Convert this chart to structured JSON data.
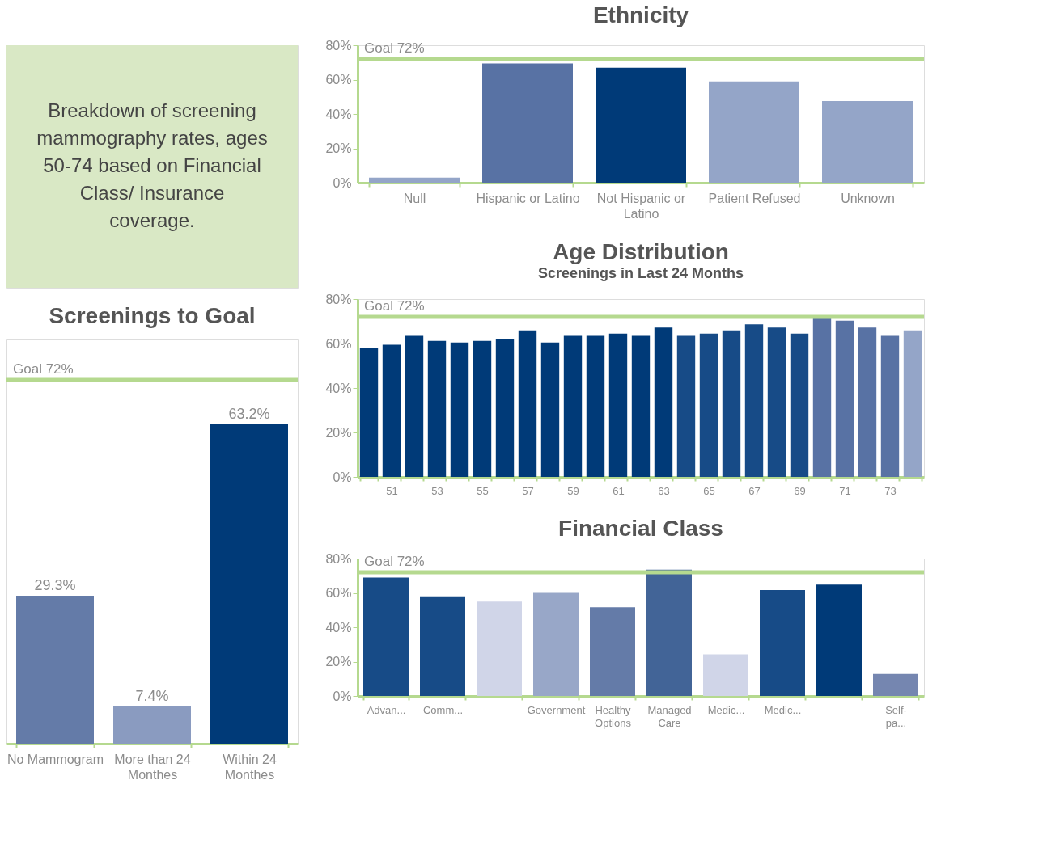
{
  "chart_data": [
    {
      "type": "other",
      "title": "Breakdown of screening mammography rates, ages 50-74 based on Financial Class/ Insurance coverage.",
      "color": "#d9e8c5"
    },
    {
      "type": "bar",
      "title": "Screenings to Goal",
      "categories": [
        "No Mammogram",
        "More than 24 Monthes",
        "Within 24 Monthes"
      ],
      "values": [
        29.3,
        7.4,
        63.2
      ],
      "colors": [
        "#647ba8",
        "#8a9bc0",
        "#003a78"
      ],
      "value_labels": [
        "29.3%",
        "7.4%",
        "63.2%"
      ],
      "ref_lines": [
        {
          "axis": "y",
          "value": 72,
          "label": "Goal 72%",
          "color": "#b5d98f"
        }
      ]
    },
    {
      "type": "bar",
      "title": "Ethnicity",
      "categories": [
        "Null",
        "Hispanic or Latino",
        "Not Hispanic or Latino",
        "Patient Refused",
        "Unknown"
      ],
      "values": [
        3,
        69.4,
        67,
        59,
        47.5
      ],
      "colors": [
        "#94a5c8",
        "#5872a4",
        "#003a78",
        "#94a5c8",
        "#94a5c8"
      ],
      "ylim": [
        0,
        80
      ],
      "yticks": [
        {
          "value": 0,
          "label": "0%"
        },
        {
          "value": 20,
          "label": "20%"
        },
        {
          "value": 40,
          "label": "40%"
        },
        {
          "value": 60,
          "label": "60%"
        },
        {
          "value": 80,
          "label": "80%"
        }
      ],
      "ref_lines": [
        {
          "axis": "y",
          "value": 72,
          "label": "Goal 72%",
          "color": "#b5d98f"
        }
      ]
    },
    {
      "type": "bar",
      "title": "Age Distribution",
      "subtitle": "Screenings in Last 24 Months",
      "categories": [
        null,
        "51",
        null,
        "53",
        null,
        "55",
        null,
        "57",
        null,
        "59",
        null,
        "61",
        null,
        "63",
        null,
        "65",
        null,
        "67",
        null,
        "69",
        null,
        "71",
        null,
        "73",
        null
      ],
      "values": [
        58.2,
        59.5,
        63.5,
        61.2,
        60.5,
        61.2,
        62.2,
        65.9,
        60.5,
        63.5,
        63.5,
        64.5,
        63.5,
        67.2,
        63.5,
        64.5,
        65.9,
        68.6,
        67.2,
        64.5,
        71.3,
        70.3,
        67.2,
        63.5,
        65.9
      ],
      "colors": [
        "#003a78",
        "#003a78",
        "#003a78",
        "#003a78",
        "#003a78",
        "#003a78",
        "#003a78",
        "#003a78",
        "#003a78",
        "#003a78",
        "#003a78",
        "#003a78",
        "#003a78",
        "#003a78",
        "#174b87",
        "#174b87",
        "#174b87",
        "#174b87",
        "#174b87",
        "#174b87",
        "#5872a4",
        "#5872a4",
        "#5872a4",
        "#5872a4",
        "#94a5c8"
      ],
      "ylim": [
        0,
        80
      ],
      "yticks": [
        {
          "value": 0,
          "label": "0%"
        },
        {
          "value": 20,
          "label": "20%"
        },
        {
          "value": 40,
          "label": "40%"
        },
        {
          "value": 60,
          "label": "60%"
        },
        {
          "value": 80,
          "label": "80%"
        }
      ],
      "ref_lines": [
        {
          "axis": "y",
          "value": 72,
          "label": "Goal 72%",
          "color": "#b5d98f"
        }
      ]
    },
    {
      "type": "bar",
      "title": "Financial Class",
      "categories": [
        "Advan...",
        "Comm...",
        null,
        "Government",
        "Healthy Options",
        "Managed Care",
        "Medic...",
        "Medic...",
        null,
        "Self-pa..."
      ],
      "values": [
        69,
        58,
        55,
        60,
        51.6,
        73.5,
        24.2,
        61.6,
        64.8,
        12.8
      ],
      "colors": [
        "#174b87",
        "#174b87",
        "#d0d5e8",
        "#98a7c8",
        "#647ba8",
        "#426497",
        "#d0d5e8",
        "#174b87",
        "#003a78",
        "#7586b0"
      ],
      "ylim": [
        0,
        80
      ],
      "yticks": [
        {
          "value": 0,
          "label": "0%"
        },
        {
          "value": 20,
          "label": "20%"
        },
        {
          "value": 40,
          "label": "40%"
        },
        {
          "value": 60,
          "label": "60%"
        },
        {
          "value": 80,
          "label": "80%"
        }
      ],
      "ref_lines": [
        {
          "axis": "y",
          "value": 72,
          "label": "Goal 72%",
          "color": "#b5d98f"
        }
      ]
    }
  ]
}
